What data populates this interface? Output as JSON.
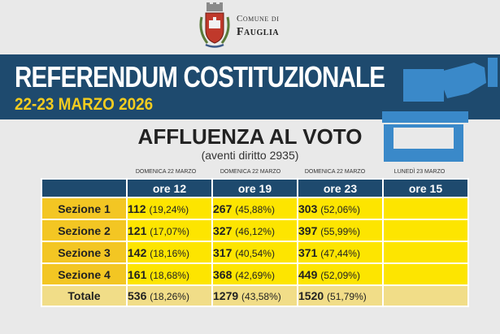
{
  "header": {
    "comune_small": "Comune di",
    "comune_name": "Fauglia"
  },
  "banner": {
    "title": "REFERENDUM COSTITUZIONALE",
    "dates": "22-23 MARZO 2026"
  },
  "affluenza": {
    "title": "AFFLUENZA AL VOTO",
    "subtitle": "(aventi diritto 2935)"
  },
  "columns": [
    {
      "day": "DOMENICA 22 MARZO",
      "time": "ore 12"
    },
    {
      "day": "DOMENICA 22 MARZO",
      "time": "ore 19"
    },
    {
      "day": "DOMENICA 22 MARZO",
      "time": "ore 23"
    },
    {
      "day": "LUNEDÌ 23 MARZO",
      "time": "ore 15"
    }
  ],
  "rows": [
    {
      "label": "Sezione 1",
      "cells": [
        {
          "n": "112",
          "p": "(19,24%)"
        },
        {
          "n": "267",
          "p": "(45,88%)"
        },
        {
          "n": "303",
          "p": "(52,06%)"
        },
        {
          "n": "",
          "p": ""
        }
      ]
    },
    {
      "label": "Sezione 2",
      "cells": [
        {
          "n": "121",
          "p": "(17,07%)"
        },
        {
          "n": "327",
          "p": "(46,12%)"
        },
        {
          "n": "397",
          "p": "(55,99%)"
        },
        {
          "n": "",
          "p": ""
        }
      ]
    },
    {
      "label": "Sezione 3",
      "cells": [
        {
          "n": "142",
          "p": "(18,16%)"
        },
        {
          "n": "317",
          "p": "(40,54%)"
        },
        {
          "n": "371",
          "p": "(47,44%)"
        },
        {
          "n": "",
          "p": ""
        }
      ]
    },
    {
      "label": "Sezione 4",
      "cells": [
        {
          "n": "161",
          "p": "(18,68%)"
        },
        {
          "n": "368",
          "p": "(42,69%)"
        },
        {
          "n": "449",
          "p": "(52,09%)"
        },
        {
          "n": "",
          "p": ""
        }
      ]
    }
  ],
  "total": {
    "label": "Totale",
    "cells": [
      {
        "n": "536",
        "p": "(18,26%)"
      },
      {
        "n": "1279",
        "p": "(43,58%)"
      },
      {
        "n": "1520",
        "p": "(51,79%)"
      },
      {
        "n": "",
        "p": ""
      }
    ]
  },
  "colors": {
    "banner": "#1e4a6e",
    "accent_yellow": "#f3cc1f",
    "cell_yellow": "#fde500",
    "total_row": "#f1dd88"
  }
}
